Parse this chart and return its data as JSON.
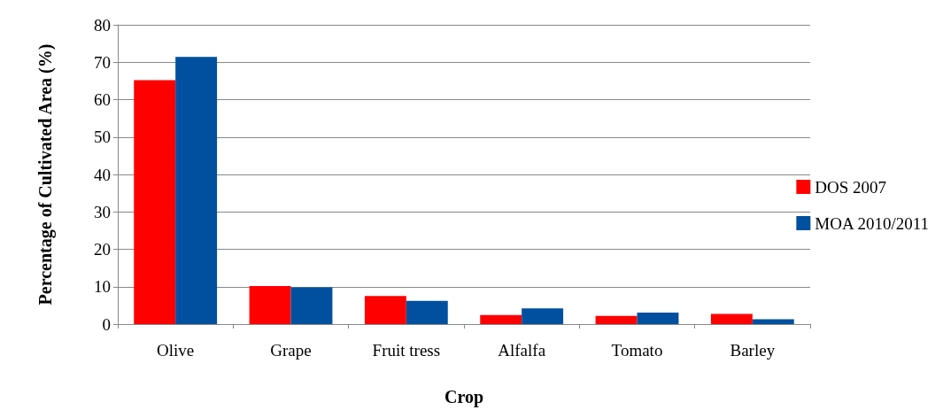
{
  "chart_data": {
    "type": "bar",
    "xlabel": "Crop",
    "ylabel": "Percentage of Cultivated Area (%)",
    "categories": [
      "Olive",
      "Grape",
      "Fruit tress",
      "Alfalfa",
      "Tomato",
      "Barley"
    ],
    "series": [
      {
        "name": "DOS 2007",
        "color": "#ff0000",
        "values": [
          65.2,
          10.2,
          7.5,
          2.4,
          2.2,
          2.7
        ]
      },
      {
        "name": "MOA 2010/2011",
        "color": "#0050a0",
        "values": [
          71.4,
          9.8,
          6.2,
          4.2,
          3.1,
          1.3
        ]
      }
    ],
    "ylim": [
      0,
      80
    ],
    "yticks": [
      0,
      10,
      20,
      30,
      40,
      50,
      60,
      70,
      80
    ],
    "grid": "y",
    "legend": "right"
  }
}
